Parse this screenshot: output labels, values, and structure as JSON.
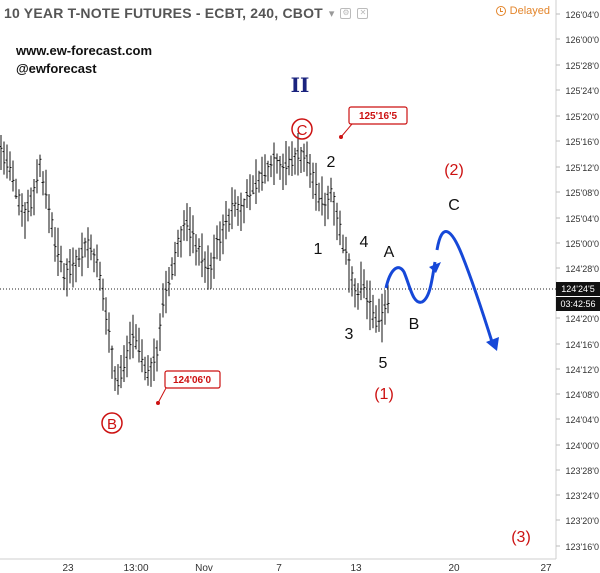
{
  "header": {
    "title": "10 YEAR T-NOTE FUTURES - ECBT, 240, CBOT",
    "dropdown_glyph": "▾",
    "delayed_label": "Delayed"
  },
  "branding": {
    "website": "www.ew-forecast.com",
    "handle": "@ewforecast"
  },
  "price_axis": {
    "labels": [
      "126'04'0",
      "126'00'0",
      "125'28'0",
      "125'24'0",
      "125'20'0",
      "125'16'0",
      "125'12'0",
      "125'08'0",
      "125'04'0",
      "125'00'0",
      "124'28'0",
      "124'24'5",
      "124'20'0",
      "124'16'0",
      "124'12'0",
      "124'08'0",
      "124'04'0",
      "124'00'0",
      "123'28'0",
      "123'24'0",
      "123'20'0",
      "123'16'0"
    ],
    "current_price": "124'24'5",
    "countdown": "03:42:56"
  },
  "time_axis": {
    "labels": [
      "23",
      "13:00",
      "Nov",
      "7",
      "13",
      "20",
      "27"
    ]
  },
  "wave_labels": {
    "degree_II": "II",
    "circle_C": "C",
    "circle_B": "B",
    "n1": "1",
    "n2": "2",
    "n3": "3",
    "n4": "4",
    "n5": "5",
    "A": "A",
    "B": "B",
    "C": "C",
    "p1": "(1)",
    "p2": "(2)",
    "p3": "(3)"
  },
  "callouts": {
    "high": "125'16'5",
    "low": "124'06'0"
  },
  "colors": {
    "candle": "#111111",
    "wave_red": "#cc1111",
    "wave_blue_II": "#1a237e",
    "projection_blue": "#1648d8",
    "delayed": "#e3852b",
    "price_tag_bg": "#111111"
  },
  "chart_data": {
    "type": "ohlc",
    "title": "10 YEAR T-NOTE FUTURES - ECBT, 240, CBOT",
    "ylim": [
      123.47,
      126.19
    ],
    "yunit": "price (32nds)",
    "current_price": 124.77,
    "swing_high": 125.52,
    "swing_low": 124.19,
    "projection_path": [
      {
        "label": "start",
        "price": 124.7
      },
      {
        "label": "A",
        "price": 124.83
      },
      {
        "label": "B",
        "price": 124.63
      },
      {
        "label": "C",
        "price": 125.03
      },
      {
        "label": "end",
        "price": 124.43
      }
    ]
  }
}
